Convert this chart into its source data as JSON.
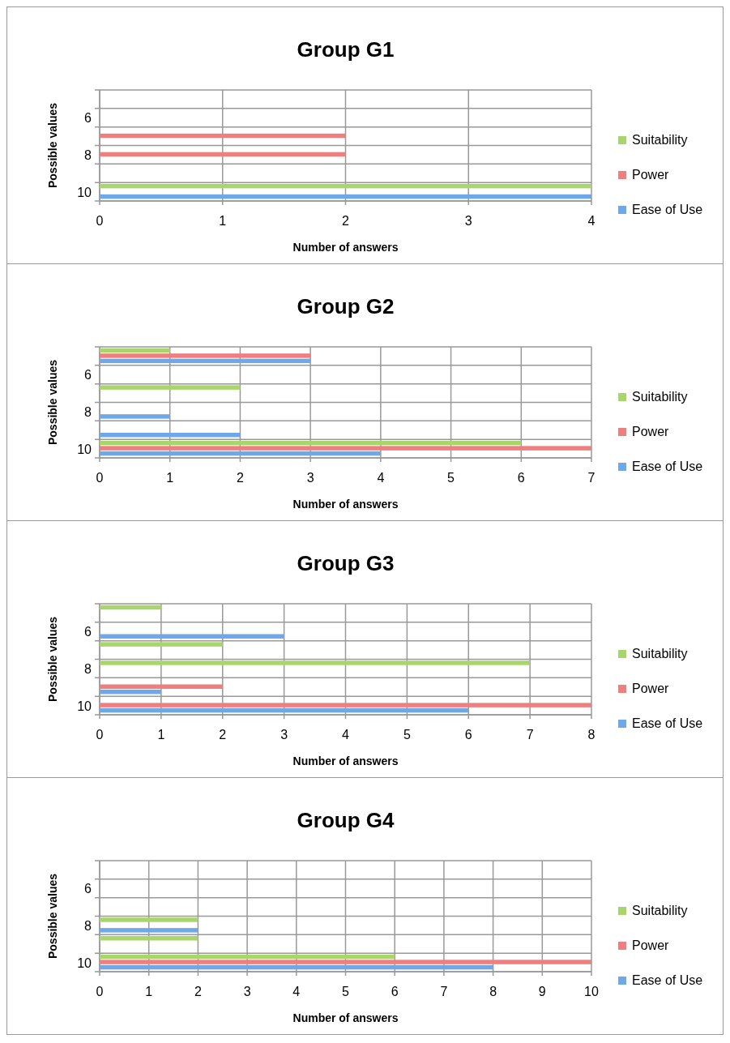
{
  "chart_data": [
    {
      "type": "bar",
      "orientation": "horizontal",
      "title": "Group G1",
      "xlabel": "Number of answers",
      "ylabel": "Possible values",
      "categories": [
        null,
        "6",
        null,
        "8",
        null,
        "10"
      ],
      "xlim": [
        0,
        4
      ],
      "xticks": [
        0,
        1,
        2,
        3,
        4
      ],
      "grid": true,
      "legend": "right",
      "series": [
        {
          "name": "Ease of Use",
          "color": "#6fa8e8",
          "values": [
            0,
            0,
            0,
            0,
            0,
            4
          ]
        },
        {
          "name": "Power",
          "color": "#ef7f7f",
          "values": [
            0,
            0,
            2,
            2,
            0,
            0
          ]
        },
        {
          "name": "Suitability",
          "color": "#a9d66c",
          "values": [
            0,
            0,
            0,
            0,
            0,
            4
          ]
        }
      ]
    },
    {
      "type": "bar",
      "orientation": "horizontal",
      "title": "Group G2",
      "xlabel": "Number of answers",
      "ylabel": "Possible values",
      "categories": [
        null,
        "6",
        null,
        "8",
        null,
        "10"
      ],
      "xlim": [
        0,
        7
      ],
      "xticks": [
        0,
        1,
        2,
        3,
        4,
        5,
        6,
        7
      ],
      "grid": true,
      "legend": "right",
      "series": [
        {
          "name": "Ease of Use",
          "color": "#6fa8e8",
          "values": [
            3,
            0,
            0,
            1,
            2,
            4
          ]
        },
        {
          "name": "Power",
          "color": "#ef7f7f",
          "values": [
            3,
            0,
            0,
            0,
            0,
            7
          ]
        },
        {
          "name": "Suitability",
          "color": "#a9d66c",
          "values": [
            1,
            0,
            2,
            0,
            0,
            6
          ]
        }
      ]
    },
    {
      "type": "bar",
      "orientation": "horizontal",
      "title": "Group G3",
      "xlabel": "Number of answers",
      "ylabel": "Possible values",
      "categories": [
        null,
        "6",
        null,
        "8",
        null,
        "10"
      ],
      "xlim": [
        0,
        8
      ],
      "xticks": [
        0,
        1,
        2,
        3,
        4,
        5,
        6,
        7,
        8
      ],
      "grid": true,
      "legend": "right",
      "series": [
        {
          "name": "Ease of Use",
          "color": "#6fa8e8",
          "values": [
            0,
            3,
            0,
            0,
            1,
            6
          ]
        },
        {
          "name": "Power",
          "color": "#ef7f7f",
          "values": [
            0,
            0,
            0,
            0,
            2,
            8
          ]
        },
        {
          "name": "Suitability",
          "color": "#a9d66c",
          "values": [
            1,
            0,
            2,
            7,
            0,
            0
          ]
        }
      ]
    },
    {
      "type": "bar",
      "orientation": "horizontal",
      "title": "Group G4",
      "xlabel": "Number of answers",
      "ylabel": "Possible values",
      "categories": [
        null,
        "6",
        null,
        "8",
        null,
        "10"
      ],
      "xlim": [
        0,
        10
      ],
      "xticks": [
        0,
        1,
        2,
        3,
        4,
        5,
        6,
        7,
        8,
        9,
        10
      ],
      "grid": true,
      "legend": "right",
      "series": [
        {
          "name": "Ease of Use",
          "color": "#6fa8e8",
          "values": [
            0,
            0,
            0,
            2,
            0,
            8
          ]
        },
        {
          "name": "Power",
          "color": "#ef7f7f",
          "values": [
            0,
            0,
            0,
            0,
            0,
            10
          ]
        },
        {
          "name": "Suitability",
          "color": "#a9d66c",
          "values": [
            0,
            0,
            0,
            2,
            2,
            6
          ]
        }
      ]
    }
  ]
}
